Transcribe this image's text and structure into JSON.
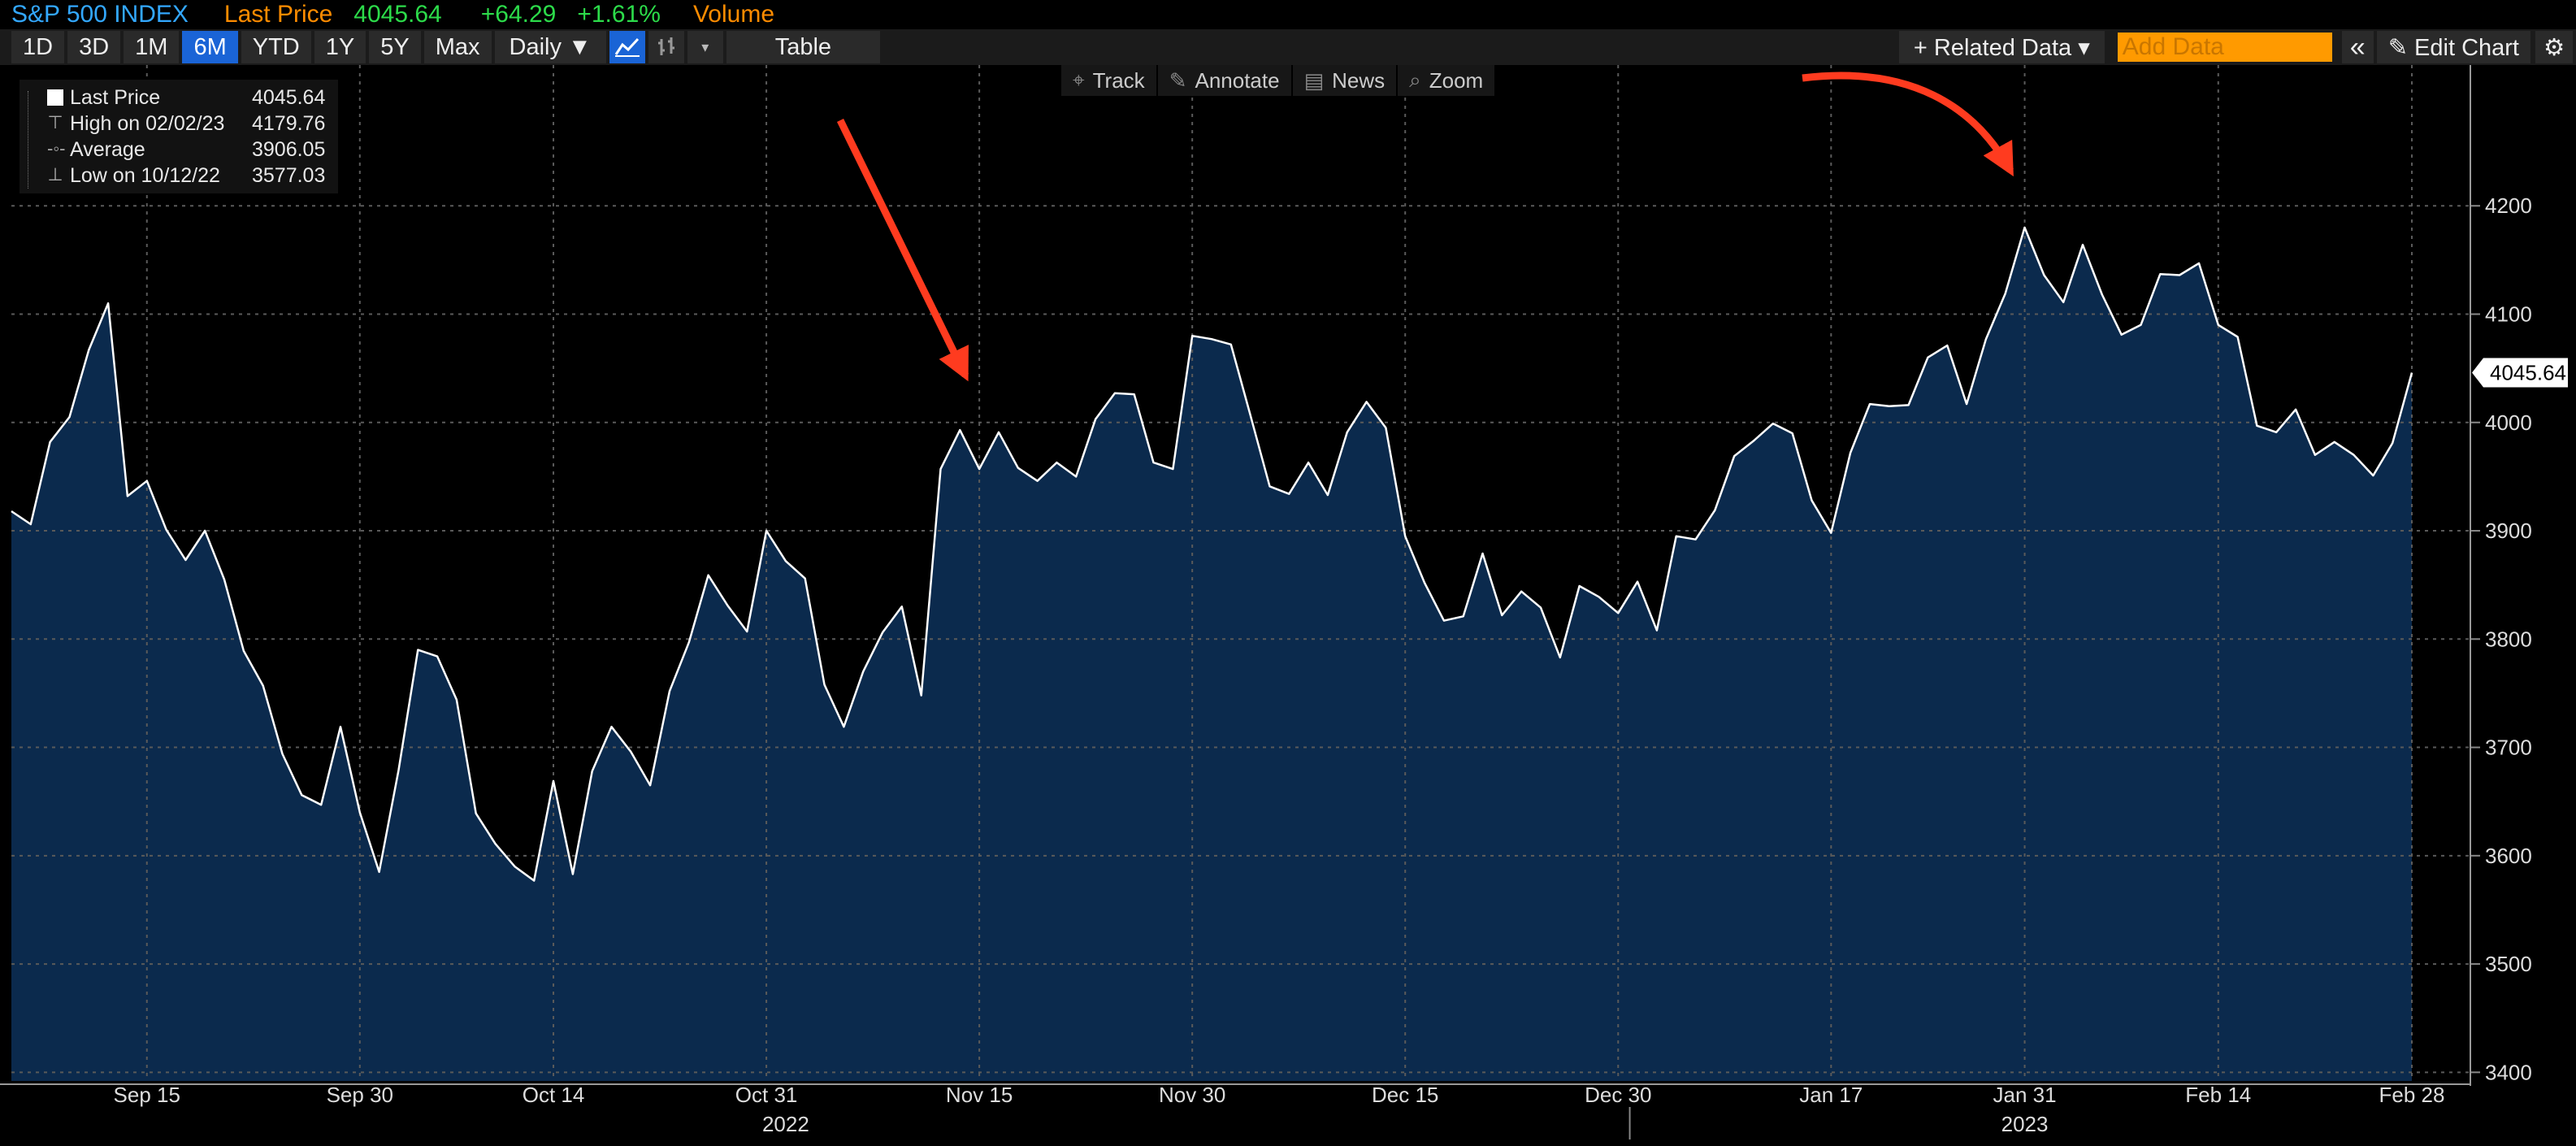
{
  "header": {
    "ticker": "S&P 500 INDEX",
    "field": "Last Price",
    "last": "4045.64",
    "change": "+64.29",
    "change_pct": "+1.61%",
    "extra": "Volume"
  },
  "toolbar": {
    "ranges": [
      "1D",
      "3D",
      "1M",
      "6M",
      "YTD",
      "1Y",
      "5Y",
      "Max"
    ],
    "active_range": "6M",
    "frequency": "Daily ▼",
    "table_label": "Table",
    "related_data": "+ Related Data ▾",
    "add_data_placeholder": "Add Data",
    "collapse": "«",
    "edit_chart": "✎ Edit Chart",
    "settings": "⚙"
  },
  "tools": [
    {
      "icon": "crosshair-icon",
      "glyph": "⌖",
      "label": "Track"
    },
    {
      "icon": "pen-icon",
      "glyph": "✎",
      "label": "Annotate"
    },
    {
      "icon": "news-icon",
      "glyph": "▤",
      "label": "News"
    },
    {
      "icon": "magnifier-icon",
      "glyph": "⌕",
      "label": "Zoom"
    }
  ],
  "legend": {
    "rows": [
      {
        "label": "Last Price",
        "value": "4045.64"
      },
      {
        "label": "High on 02/02/23",
        "value": "4179.76"
      },
      {
        "label": "Average",
        "value": "3906.05"
      },
      {
        "label": "Low on 10/12/22",
        "value": "3577.03"
      }
    ]
  },
  "colors": {
    "line": "#ffffff",
    "fill": "#0b2a4d",
    "grid": "#5a5a5a",
    "arrow": "#ff3b1f",
    "last_tag_bg": "#ffffff",
    "accent_ticker": "#33a8ff"
  },
  "chart_data": {
    "type": "area",
    "series": [
      {
        "name": "Last Price",
        "values": [
          3918,
          3906,
          3982,
          4005,
          4067,
          4110,
          3932,
          3946,
          3901,
          3873,
          3900,
          3855,
          3789,
          3757,
          3694,
          3656,
          3647,
          3719,
          3640,
          3585,
          3679,
          3790,
          3784,
          3744,
          3639,
          3611,
          3590,
          3577,
          3669,
          3583,
          3678,
          3719,
          3696,
          3665,
          3752,
          3797,
          3859,
          3831,
          3807,
          3900,
          3872,
          3856,
          3758,
          3719,
          3770,
          3806,
          3830,
          3748,
          3957,
          3993,
          3957,
          3991,
          3958,
          3946,
          3963,
          3950,
          4003,
          4027,
          4026,
          3963,
          3957,
          4080,
          4077,
          4072,
          4007,
          3941,
          3934,
          3963,
          3933,
          3991,
          4019,
          3995,
          3895,
          3852,
          3817,
          3821,
          3879,
          3822,
          3844,
          3829,
          3783,
          3849,
          3839,
          3824,
          3853,
          3808,
          3895,
          3892,
          3919,
          3969,
          3983,
          3999,
          3990,
          3928,
          3898,
          3972,
          4017,
          4015,
          4016,
          4060,
          4071,
          4017,
          4077,
          4119,
          4180,
          4136,
          4111,
          4164,
          4118,
          4081,
          4090,
          4137,
          4136,
          4147,
          4090,
          4079,
          3997,
          3991,
          4012,
          3970,
          3982,
          3970,
          3951,
          3981,
          4046
        ]
      }
    ],
    "x_labels": [
      "Sep 15",
      "Sep 30",
      "Oct 14",
      "Oct 31",
      "Nov 15",
      "Nov 30",
      "Dec 15",
      "Dec 30",
      "Jan 17",
      "Jan 31",
      "Feb 14",
      "Feb 28"
    ],
    "x_label_index": [
      7,
      18,
      28,
      39,
      50,
      61,
      72,
      83,
      94,
      104,
      114,
      124
    ],
    "year_labels": [
      {
        "label": "2022",
        "index": 40
      },
      {
        "label": "2023",
        "index": 104
      }
    ],
    "year_boundary_index": 83.6,
    "y_ticks": [
      3400,
      3500,
      3600,
      3700,
      3800,
      3900,
      4000,
      4100,
      4200
    ],
    "ylim": [
      3392,
      4330
    ],
    "last_value_label": "4045.64",
    "grid": true,
    "annotations": [
      "red arrow pointing to mid-November peak",
      "curved red arrow pointing to early-February high"
    ]
  }
}
